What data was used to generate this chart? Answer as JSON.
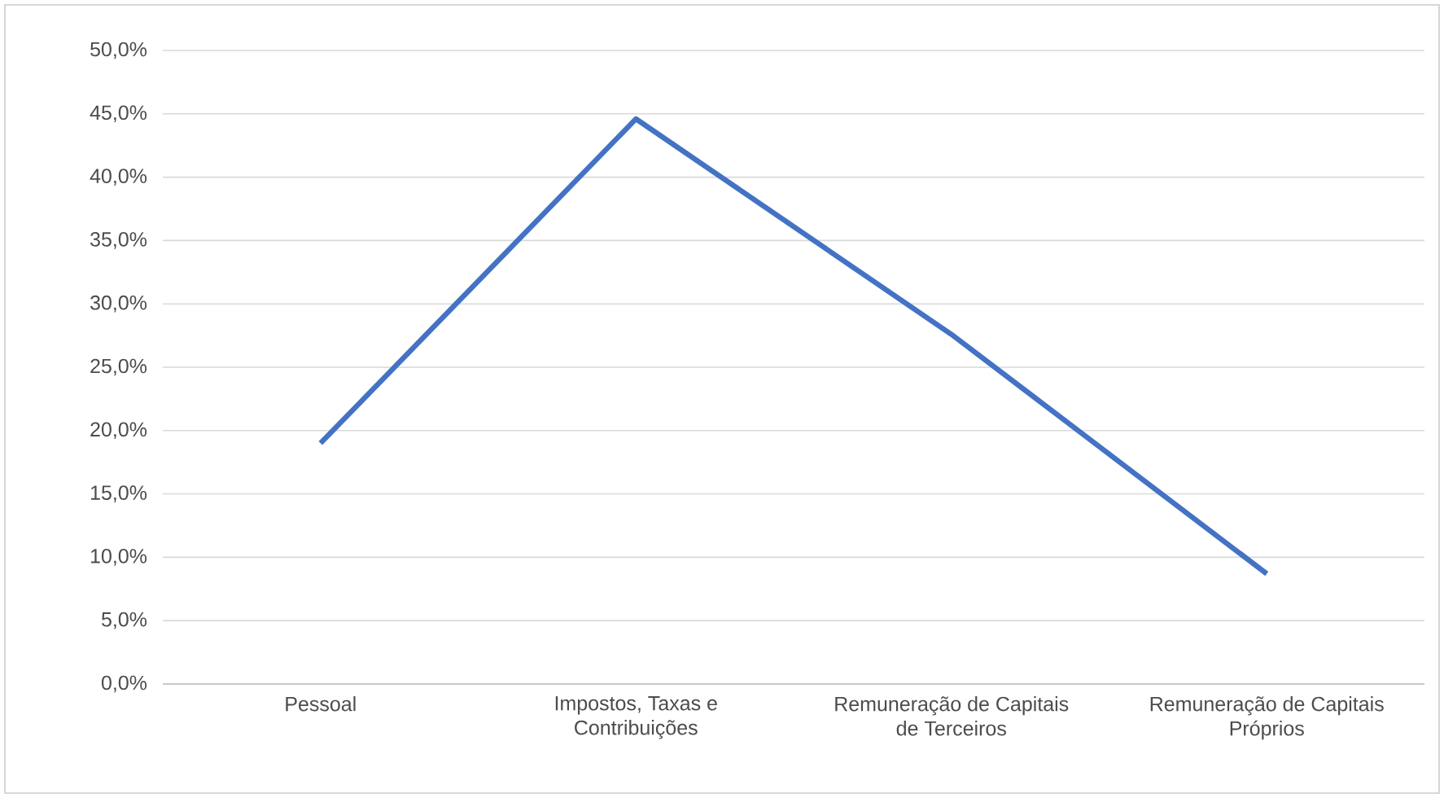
{
  "chart_data": {
    "type": "line",
    "categories": [
      "Pessoal",
      "Impostos, Taxas e Contribuições",
      "Remuneração de Capitais de Terceiros",
      "Remuneração de Capitais Próprios"
    ],
    "series": [
      {
        "color": "#4472c4",
        "values": [
          19.0,
          44.6,
          27.6,
          8.7
        ]
      }
    ],
    "ylim": [
      0,
      50
    ],
    "yticks": [
      {
        "value": 0,
        "label": "0,0%"
      },
      {
        "value": 5,
        "label": "5,0%"
      },
      {
        "value": 10,
        "label": "10,0%"
      },
      {
        "value": 15,
        "label": "15,0%"
      },
      {
        "value": 20,
        "label": "20,0%"
      },
      {
        "value": 25,
        "label": "25,0%"
      },
      {
        "value": 30,
        "label": "30,0%"
      },
      {
        "value": 35,
        "label": "35,0%"
      },
      {
        "value": 40,
        "label": "40,0%"
      },
      {
        "value": 45,
        "label": "45,0%"
      },
      {
        "value": 50,
        "label": "50,0%"
      }
    ],
    "grid": "y",
    "marker": "none",
    "line_style": "solid"
  }
}
